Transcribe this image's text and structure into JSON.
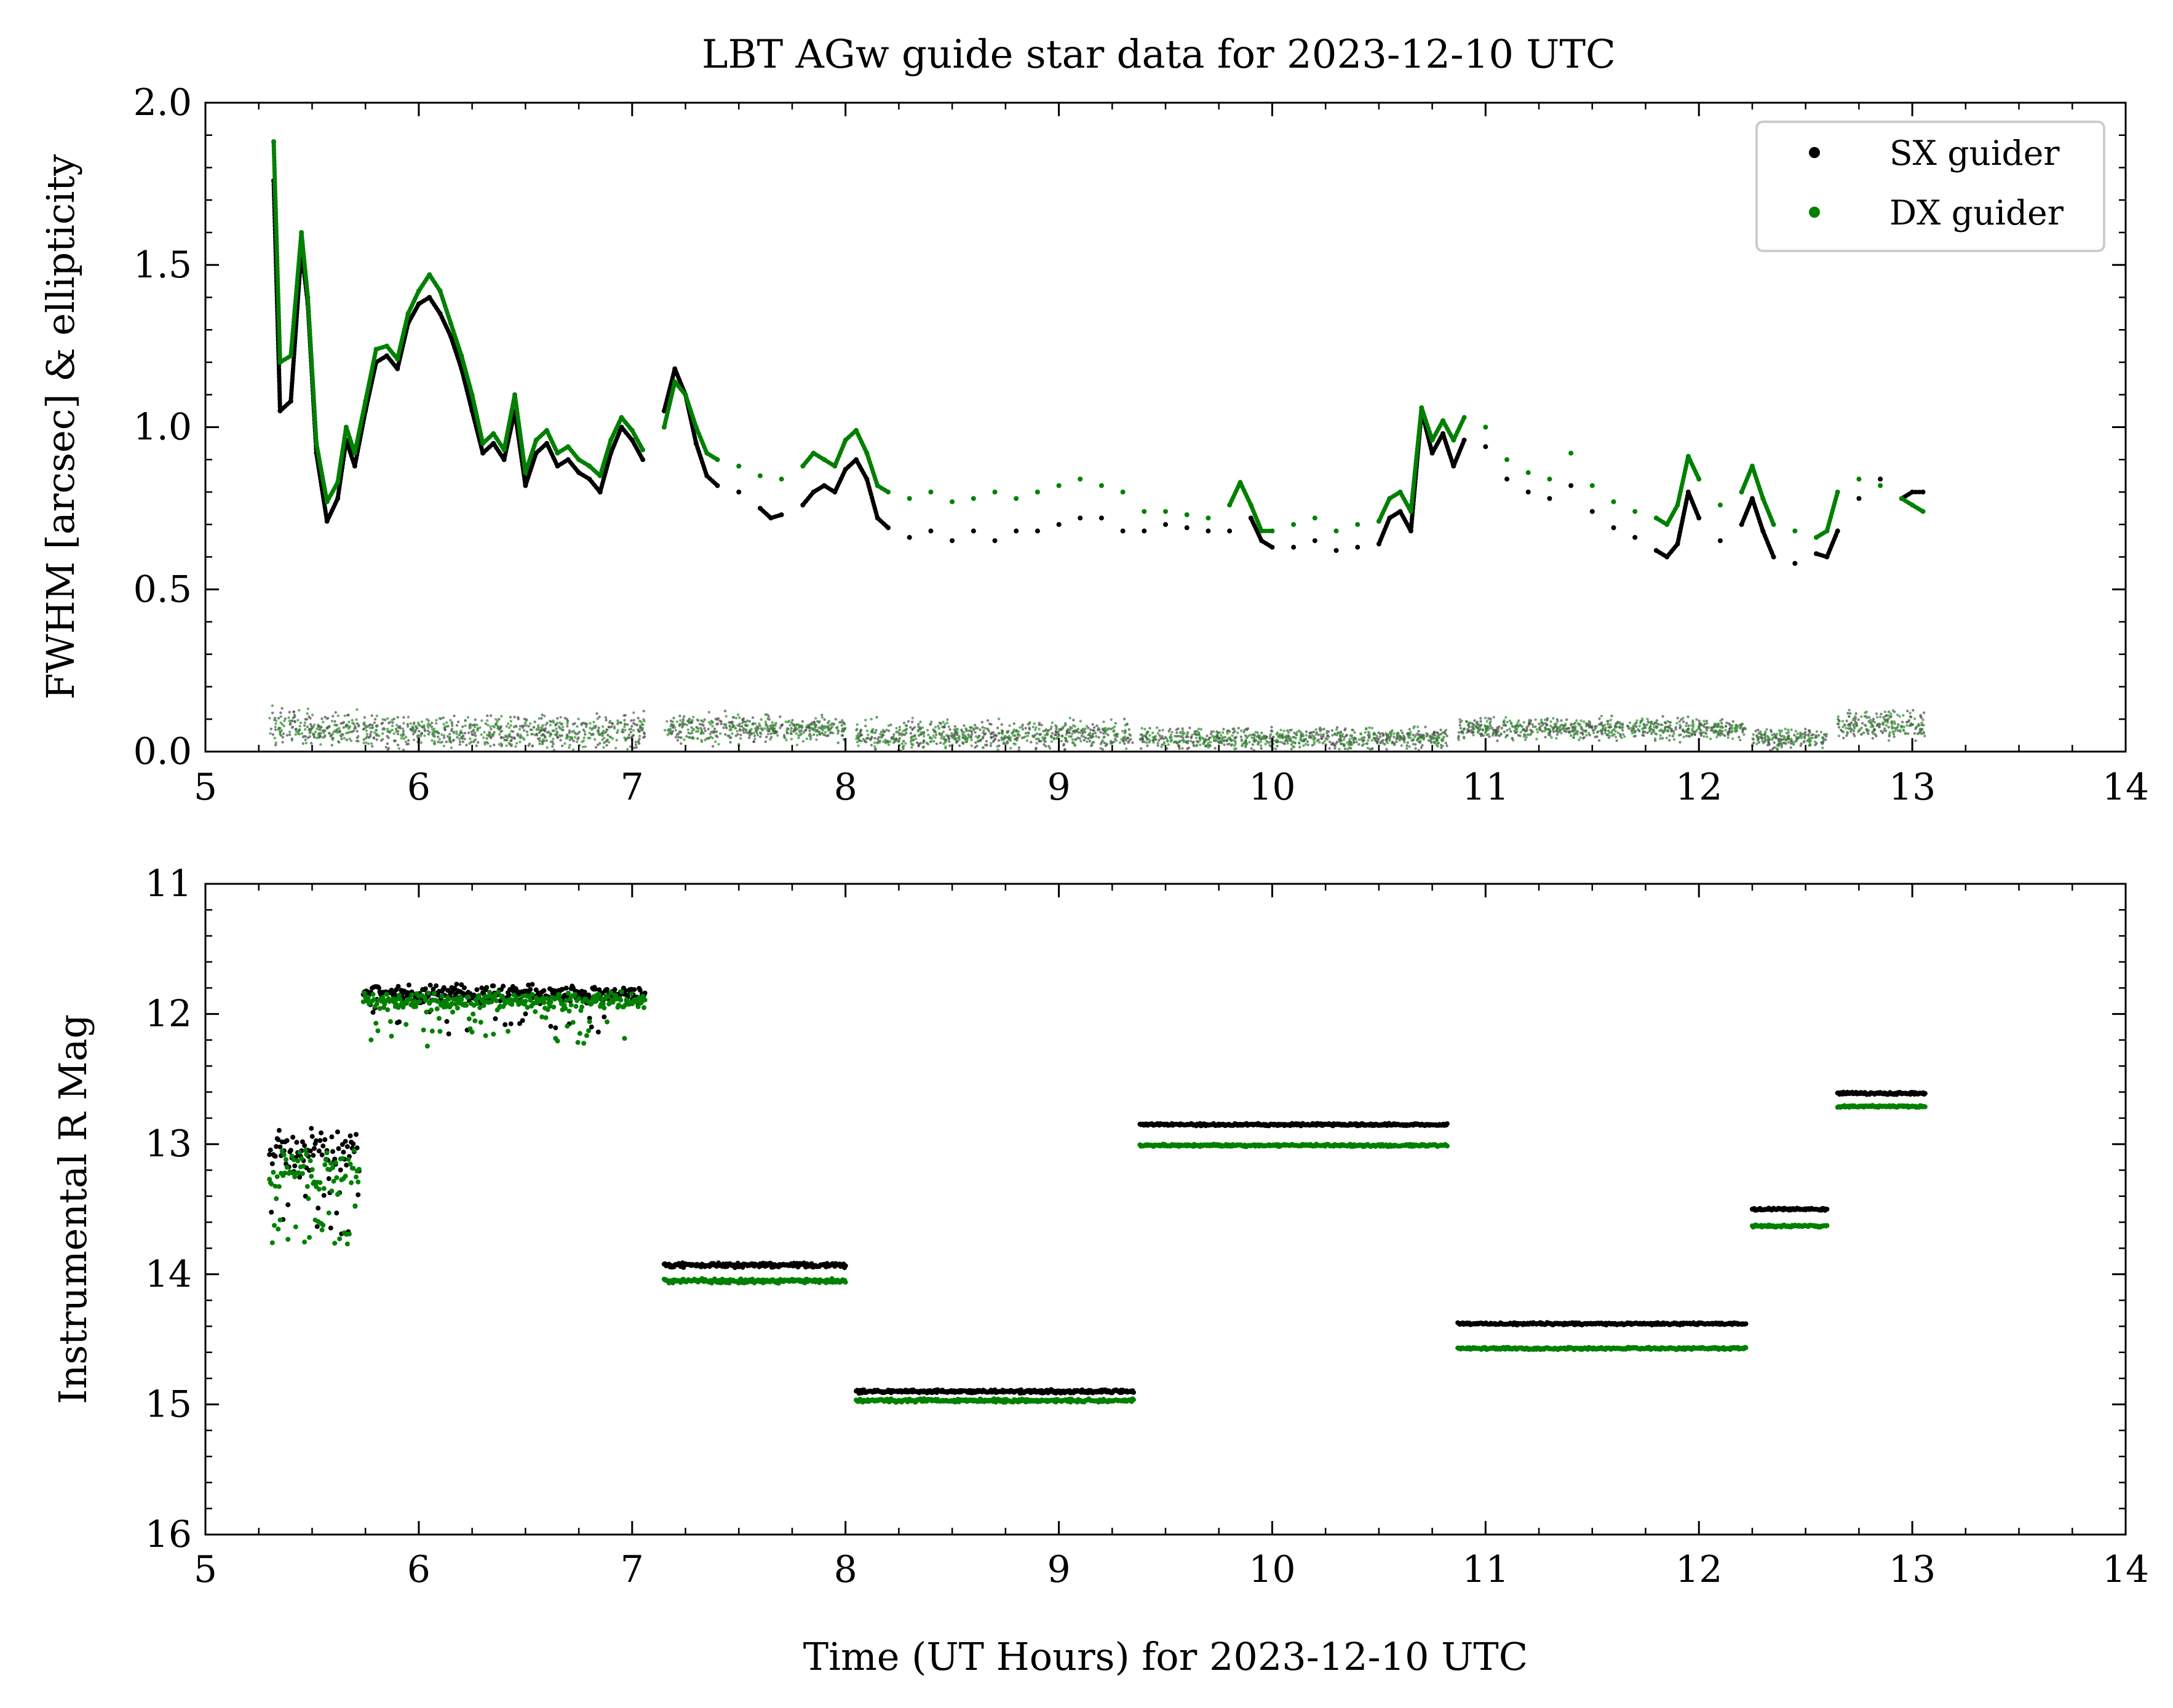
{
  "title": "LBT AGw guide star data for 2023-12-10 UTC",
  "legend": {
    "placement": "upper-right",
    "entries": [
      {
        "name": "SX guider",
        "color": "#000000"
      },
      {
        "name": "DX guider",
        "color": "#008000"
      }
    ]
  },
  "chart_data": [
    {
      "type": "scatter",
      "panel": "top",
      "ylabel": "FWHM [arcsec] & ellipticity",
      "xlim": [
        5,
        14
      ],
      "ylim": [
        0,
        2
      ],
      "xticks": [
        "5",
        "6",
        "7",
        "8",
        "9",
        "10",
        "11",
        "12",
        "13",
        "14"
      ],
      "yticks": [
        "0.0",
        "0.5",
        "1.0",
        "1.5",
        "2.0"
      ],
      "series": [
        {
          "name": "SX guider",
          "color": "#000000",
          "fwhm": [
            [
              5.32,
              1.76
            ],
            [
              5.35,
              1.05
            ],
            [
              5.4,
              1.08
            ],
            [
              5.45,
              1.55
            ],
            [
              5.48,
              1.38
            ],
            [
              5.52,
              0.92
            ],
            [
              5.57,
              0.71
            ],
            [
              5.62,
              0.78
            ],
            [
              5.66,
              0.96
            ],
            [
              5.7,
              0.88
            ],
            [
              5.75,
              1.05
            ],
            [
              5.8,
              1.2
            ],
            [
              5.85,
              1.22
            ],
            [
              5.9,
              1.18
            ],
            [
              5.95,
              1.32
            ],
            [
              6.0,
              1.38
            ],
            [
              6.05,
              1.4
            ],
            [
              6.1,
              1.35
            ],
            [
              6.15,
              1.28
            ],
            [
              6.2,
              1.18
            ],
            [
              6.25,
              1.05
            ],
            [
              6.3,
              0.92
            ],
            [
              6.35,
              0.95
            ],
            [
              6.4,
              0.9
            ],
            [
              6.45,
              1.05
            ],
            [
              6.5,
              0.82
            ],
            [
              6.55,
              0.92
            ],
            [
              6.6,
              0.95
            ],
            [
              6.65,
              0.88
            ],
            [
              6.7,
              0.9
            ],
            [
              6.75,
              0.86
            ],
            [
              6.8,
              0.84
            ],
            [
              6.85,
              0.8
            ],
            [
              6.9,
              0.92
            ],
            [
              6.95,
              1.0
            ],
            [
              7.0,
              0.96
            ],
            [
              7.05,
              0.9
            ],
            [
              7.15,
              1.05
            ],
            [
              7.2,
              1.18
            ],
            [
              7.25,
              1.1
            ],
            [
              7.3,
              0.95
            ],
            [
              7.35,
              0.85
            ],
            [
              7.4,
              0.82
            ],
            [
              7.5,
              0.8
            ],
            [
              7.6,
              0.75
            ],
            [
              7.65,
              0.72
            ],
            [
              7.7,
              0.73
            ],
            [
              7.8,
              0.76
            ],
            [
              7.85,
              0.8
            ],
            [
              7.9,
              0.82
            ],
            [
              7.95,
              0.8
            ],
            [
              8.0,
              0.87
            ],
            [
              8.05,
              0.9
            ],
            [
              8.1,
              0.84
            ],
            [
              8.15,
              0.72
            ],
            [
              8.2,
              0.69
            ],
            [
              8.3,
              0.66
            ],
            [
              8.4,
              0.68
            ],
            [
              8.5,
              0.65
            ],
            [
              8.6,
              0.68
            ],
            [
              8.7,
              0.65
            ],
            [
              8.8,
              0.68
            ],
            [
              8.9,
              0.68
            ],
            [
              9.0,
              0.7
            ],
            [
              9.1,
              0.72
            ],
            [
              9.2,
              0.72
            ],
            [
              9.3,
              0.68
            ],
            [
              9.4,
              0.68
            ],
            [
              9.5,
              0.7
            ],
            [
              9.6,
              0.69
            ],
            [
              9.7,
              0.68
            ],
            [
              9.8,
              0.68
            ],
            [
              9.9,
              0.72
            ],
            [
              9.95,
              0.65
            ],
            [
              10.0,
              0.63
            ],
            [
              10.1,
              0.63
            ],
            [
              10.2,
              0.65
            ],
            [
              10.3,
              0.62
            ],
            [
              10.4,
              0.63
            ],
            [
              10.5,
              0.64
            ],
            [
              10.55,
              0.72
            ],
            [
              10.6,
              0.74
            ],
            [
              10.65,
              0.68
            ],
            [
              10.7,
              1.05
            ],
            [
              10.75,
              0.92
            ],
            [
              10.8,
              0.98
            ],
            [
              10.85,
              0.88
            ],
            [
              10.9,
              0.96
            ],
            [
              11.0,
              0.94
            ],
            [
              11.1,
              0.84
            ],
            [
              11.2,
              0.8
            ],
            [
              11.3,
              0.78
            ],
            [
              11.4,
              0.82
            ],
            [
              11.5,
              0.74
            ],
            [
              11.6,
              0.69
            ],
            [
              11.7,
              0.66
            ],
            [
              11.8,
              0.62
            ],
            [
              11.85,
              0.6
            ],
            [
              11.9,
              0.64
            ],
            [
              11.95,
              0.8
            ],
            [
              12.0,
              0.72
            ],
            [
              12.1,
              0.65
            ],
            [
              12.2,
              0.7
            ],
            [
              12.25,
              0.78
            ],
            [
              12.3,
              0.68
            ],
            [
              12.35,
              0.6
            ],
            [
              12.45,
              0.58
            ],
            [
              12.55,
              0.61
            ],
            [
              12.6,
              0.6
            ],
            [
              12.65,
              0.68
            ],
            [
              12.75,
              0.78
            ],
            [
              12.85,
              0.84
            ],
            [
              12.95,
              0.78
            ],
            [
              13.0,
              0.8
            ],
            [
              13.05,
              0.8
            ]
          ]
        },
        {
          "name": "DX guider",
          "color": "#008000",
          "fwhm": [
            [
              5.32,
              1.88
            ],
            [
              5.35,
              1.2
            ],
            [
              5.4,
              1.22
            ],
            [
              5.45,
              1.6
            ],
            [
              5.48,
              1.4
            ],
            [
              5.52,
              0.95
            ],
            [
              5.57,
              0.77
            ],
            [
              5.62,
              0.83
            ],
            [
              5.66,
              1.0
            ],
            [
              5.7,
              0.92
            ],
            [
              5.75,
              1.08
            ],
            [
              5.8,
              1.24
            ],
            [
              5.85,
              1.25
            ],
            [
              5.9,
              1.21
            ],
            [
              5.95,
              1.35
            ],
            [
              6.0,
              1.42
            ],
            [
              6.05,
              1.47
            ],
            [
              6.1,
              1.42
            ],
            [
              6.15,
              1.32
            ],
            [
              6.2,
              1.22
            ],
            [
              6.25,
              1.1
            ],
            [
              6.3,
              0.95
            ],
            [
              6.35,
              0.98
            ],
            [
              6.4,
              0.93
            ],
            [
              6.45,
              1.1
            ],
            [
              6.5,
              0.86
            ],
            [
              6.55,
              0.96
            ],
            [
              6.6,
              0.99
            ],
            [
              6.65,
              0.92
            ],
            [
              6.7,
              0.94
            ],
            [
              6.75,
              0.9
            ],
            [
              6.8,
              0.88
            ],
            [
              6.85,
              0.85
            ],
            [
              6.9,
              0.96
            ],
            [
              6.95,
              1.03
            ],
            [
              7.0,
              0.99
            ],
            [
              7.05,
              0.93
            ],
            [
              7.15,
              1.0
            ],
            [
              7.2,
              1.14
            ],
            [
              7.25,
              1.1
            ],
            [
              7.3,
              1.0
            ],
            [
              7.35,
              0.92
            ],
            [
              7.4,
              0.9
            ],
            [
              7.5,
              0.88
            ],
            [
              7.6,
              0.85
            ],
            [
              7.7,
              0.84
            ],
            [
              7.8,
              0.88
            ],
            [
              7.85,
              0.92
            ],
            [
              7.9,
              0.9
            ],
            [
              7.95,
              0.88
            ],
            [
              8.0,
              0.96
            ],
            [
              8.05,
              0.99
            ],
            [
              8.1,
              0.92
            ],
            [
              8.15,
              0.82
            ],
            [
              8.2,
              0.8
            ],
            [
              8.3,
              0.78
            ],
            [
              8.4,
              0.8
            ],
            [
              8.5,
              0.77
            ],
            [
              8.6,
              0.78
            ],
            [
              8.7,
              0.8
            ],
            [
              8.8,
              0.78
            ],
            [
              8.9,
              0.8
            ],
            [
              9.0,
              0.82
            ],
            [
              9.1,
              0.84
            ],
            [
              9.2,
              0.82
            ],
            [
              9.3,
              0.8
            ],
            [
              9.4,
              0.74
            ],
            [
              9.5,
              0.74
            ],
            [
              9.6,
              0.73
            ],
            [
              9.7,
              0.72
            ],
            [
              9.8,
              0.76
            ],
            [
              9.85,
              0.83
            ],
            [
              9.9,
              0.76
            ],
            [
              9.95,
              0.68
            ],
            [
              10.0,
              0.68
            ],
            [
              10.1,
              0.7
            ],
            [
              10.2,
              0.72
            ],
            [
              10.3,
              0.68
            ],
            [
              10.4,
              0.7
            ],
            [
              10.5,
              0.71
            ],
            [
              10.55,
              0.78
            ],
            [
              10.6,
              0.8
            ],
            [
              10.65,
              0.74
            ],
            [
              10.7,
              1.06
            ],
            [
              10.75,
              0.96
            ],
            [
              10.8,
              1.02
            ],
            [
              10.85,
              0.96
            ],
            [
              10.9,
              1.03
            ],
            [
              11.0,
              1.0
            ],
            [
              11.1,
              0.9
            ],
            [
              11.2,
              0.86
            ],
            [
              11.3,
              0.84
            ],
            [
              11.4,
              0.92
            ],
            [
              11.5,
              0.82
            ],
            [
              11.6,
              0.77
            ],
            [
              11.7,
              0.74
            ],
            [
              11.8,
              0.72
            ],
            [
              11.85,
              0.7
            ],
            [
              11.9,
              0.76
            ],
            [
              11.95,
              0.91
            ],
            [
              12.0,
              0.84
            ],
            [
              12.1,
              0.76
            ],
            [
              12.2,
              0.8
            ],
            [
              12.25,
              0.88
            ],
            [
              12.3,
              0.78
            ],
            [
              12.35,
              0.7
            ],
            [
              12.45,
              0.68
            ],
            [
              12.55,
              0.66
            ],
            [
              12.6,
              0.68
            ],
            [
              12.65,
              0.8
            ],
            [
              12.75,
              0.84
            ],
            [
              12.85,
              0.82
            ],
            [
              12.95,
              0.78
            ],
            [
              13.0,
              0.76
            ],
            [
              13.05,
              0.74
            ]
          ],
          "ellipticity_note": ""
        }
      ],
      "ellipticity_segments": [
        {
          "x0": 5.3,
          "x1": 5.72,
          "mean": 0.07,
          "spread": 0.05
        },
        {
          "x0": 5.74,
          "x1": 7.06,
          "mean": 0.06,
          "spread": 0.05
        },
        {
          "x0": 7.15,
          "x1": 8.0,
          "mean": 0.07,
          "spread": 0.04
        },
        {
          "x0": 8.05,
          "x1": 9.35,
          "mean": 0.05,
          "spread": 0.04
        },
        {
          "x0": 9.38,
          "x1": 10.82,
          "mean": 0.04,
          "spread": 0.03
        },
        {
          "x0": 10.87,
          "x1": 12.22,
          "mean": 0.07,
          "spread": 0.03
        },
        {
          "x0": 12.25,
          "x1": 12.6,
          "mean": 0.04,
          "spread": 0.03
        },
        {
          "x0": 12.65,
          "x1": 13.06,
          "mean": 0.08,
          "spread": 0.04
        }
      ]
    },
    {
      "type": "scatter",
      "panel": "bottom",
      "ylabel": "Instrumental R Mag",
      "xlabel": "Time (UT Hours) for 2023-12-10 UTC",
      "xlim": [
        5,
        14
      ],
      "ylim": [
        16,
        11
      ],
      "y_inverted": true,
      "xticks": [
        "5",
        "6",
        "7",
        "8",
        "9",
        "10",
        "11",
        "12",
        "13",
        "14"
      ],
      "yticks": [
        "11",
        "12",
        "13",
        "14",
        "15",
        "16"
      ],
      "segments": [
        {
          "x0": 5.3,
          "x1": 5.72,
          "sx": 13.05,
          "dx": 13.2,
          "scatter": 0.2
        },
        {
          "x0": 5.74,
          "x1": 7.06,
          "sx": 11.85,
          "dx": 11.9,
          "scatter": 0.08
        },
        {
          "x0": 7.15,
          "x1": 8.0,
          "sx": 13.93,
          "dx": 14.05,
          "scatter": 0.02
        },
        {
          "x0": 8.05,
          "x1": 9.35,
          "sx": 14.9,
          "dx": 14.97,
          "scatter": 0.015
        },
        {
          "x0": 9.38,
          "x1": 10.82,
          "sx": 12.85,
          "dx": 13.01,
          "scatter": 0.01
        },
        {
          "x0": 10.87,
          "x1": 12.22,
          "sx": 14.38,
          "dx": 14.57,
          "scatter": 0.01
        },
        {
          "x0": 12.25,
          "x1": 12.6,
          "sx": 13.5,
          "dx": 13.63,
          "scatter": 0.01
        },
        {
          "x0": 12.65,
          "x1": 13.06,
          "sx": 12.61,
          "dx": 12.71,
          "scatter": 0.01
        }
      ]
    }
  ]
}
